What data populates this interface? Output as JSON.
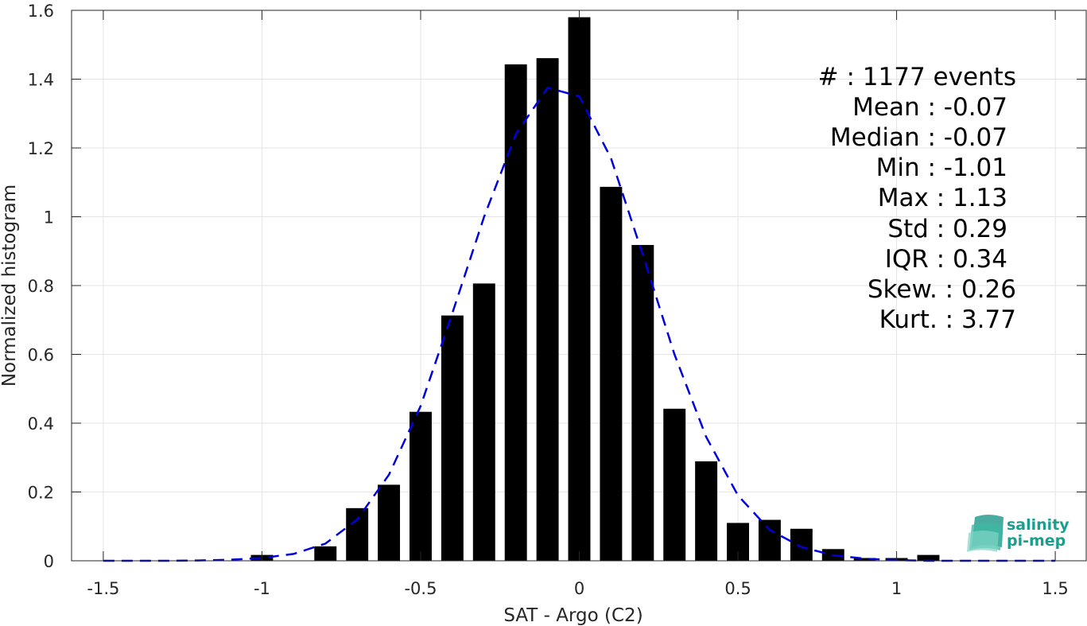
{
  "colors": {
    "bar": "#000000",
    "fit": "#0000dd",
    "grid": "#e4e4e4",
    "axis": "#262626",
    "logo": "#1a9f8e"
  },
  "chart_data": {
    "type": "bar",
    "title": "",
    "xlabel": "SAT - Argo (C2)",
    "ylabel": "Normalized histogram",
    "xlim": [
      -1.6,
      1.6
    ],
    "ylim": [
      0,
      1.6
    ],
    "grid": true,
    "xticks": [
      -1.5,
      -1,
      -0.5,
      0,
      0.5,
      1,
      1.5
    ],
    "xtick_labels": [
      "-1.5",
      "-1",
      "-0.5",
      "0",
      "0.5",
      "1",
      "1.5"
    ],
    "yticks": [
      0,
      0.2,
      0.4,
      0.6,
      0.8,
      1,
      1.2,
      1.4,
      1.6
    ],
    "ytick_labels": [
      "0",
      "0.2",
      "0.4",
      "0.6",
      "0.8",
      "1",
      "1.2",
      "1.4",
      "1.6"
    ],
    "bar_width": 0.07,
    "bars": [
      {
        "x": -1.0,
        "y": 0.017
      },
      {
        "x": -0.8,
        "y": 0.042
      },
      {
        "x": -0.7,
        "y": 0.153
      },
      {
        "x": -0.6,
        "y": 0.221
      },
      {
        "x": -0.5,
        "y": 0.433
      },
      {
        "x": -0.4,
        "y": 0.713
      },
      {
        "x": -0.3,
        "y": 0.806
      },
      {
        "x": -0.2,
        "y": 1.443
      },
      {
        "x": -0.1,
        "y": 1.461
      },
      {
        "x": 0.0,
        "y": 1.58
      },
      {
        "x": 0.1,
        "y": 1.087
      },
      {
        "x": 0.2,
        "y": 0.918
      },
      {
        "x": 0.3,
        "y": 0.442
      },
      {
        "x": 0.4,
        "y": 0.289
      },
      {
        "x": 0.5,
        "y": 0.11
      },
      {
        "x": 0.6,
        "y": 0.119
      },
      {
        "x": 0.7,
        "y": 0.093
      },
      {
        "x": 0.8,
        "y": 0.034
      },
      {
        "x": 0.9,
        "y": 0.008
      },
      {
        "x": 1.0,
        "y": 0.008
      },
      {
        "x": 1.1,
        "y": 0.017
      }
    ],
    "fit_curve": {
      "style": "dashed",
      "x": [
        -1.5,
        -1.4,
        -1.3,
        -1.2,
        -1.1,
        -1.0,
        -0.9,
        -0.8,
        -0.7,
        -0.6,
        -0.5,
        -0.4,
        -0.3,
        -0.2,
        -0.1,
        0.0,
        0.1,
        0.2,
        0.3,
        0.4,
        0.5,
        0.6,
        0.7,
        0.8,
        0.9,
        1.0,
        1.1,
        1.2,
        1.3,
        1.4,
        1.5
      ],
      "y": [
        0.0,
        0.0,
        0.0,
        0.001,
        0.003,
        0.008,
        0.02,
        0.05,
        0.12,
        0.25,
        0.45,
        0.72,
        1.0,
        1.24,
        1.375,
        1.35,
        1.17,
        0.89,
        0.6,
        0.36,
        0.19,
        0.09,
        0.04,
        0.016,
        0.006,
        0.002,
        0.0,
        0.0,
        0.0,
        0.0,
        0.0
      ]
    }
  },
  "stats": {
    "count": "#  : 1177 events",
    "mean": "Mean : -0.07",
    "median": "Median : -0.07",
    "min": "Min : -1.01",
    "max": "Max : 1.13",
    "std": "Std : 0.29",
    "iqr": "IQR : 0.34",
    "skew": "Skew. : 0.26",
    "kurt": "Kurt. : 3.77"
  },
  "logo": {
    "line1": "salinity",
    "line2": "pi-mep"
  }
}
